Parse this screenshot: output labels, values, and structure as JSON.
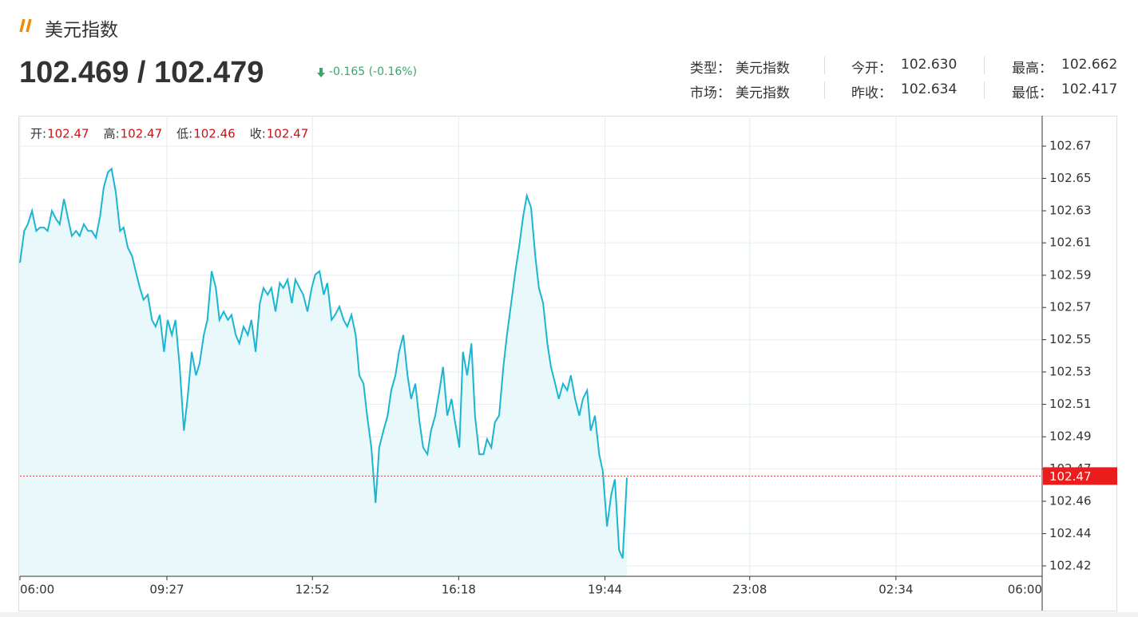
{
  "header": {
    "title": "美元指数",
    "price": "102.469 / 102.479",
    "change": "-0.165 (-0.16%)"
  },
  "info": [
    [
      {
        "label": "类型：",
        "value": "美元指数"
      },
      {
        "label": "今开：",
        "value": "102.630"
      },
      {
        "label": "最高：",
        "value": "102.662"
      }
    ],
    [
      {
        "label": "市场：",
        "value": "美元指数"
      },
      {
        "label": "昨收：",
        "value": "102.634"
      },
      {
        "label": "最低：",
        "value": "102.417"
      }
    ]
  ],
  "ohlc": [
    {
      "label": "开:",
      "value": "102.47"
    },
    {
      "label": "高:",
      "value": "102.47"
    },
    {
      "label": "低:",
      "value": "102.46"
    },
    {
      "label": "收:",
      "value": "102.47"
    }
  ],
  "chart_data": {
    "type": "line",
    "color": "#1ab6d1",
    "fill": "#e9f8fa",
    "grid": true,
    "last_value": 102.47,
    "xlim": [
      0,
      1440
    ],
    "ylim": [
      102.4103,
      102.6846
    ],
    "xticks": [
      {
        "value": 0,
        "label": "06:00"
      },
      {
        "value": 207,
        "label": "09:27"
      },
      {
        "value": 412,
        "label": "12:52"
      },
      {
        "value": 618,
        "label": "16:18"
      },
      {
        "value": 824,
        "label": "19:44"
      },
      {
        "value": 1028,
        "label": "23:08"
      },
      {
        "value": 1234,
        "label": "02:34"
      },
      {
        "value": 1440,
        "label": "06:00"
      }
    ],
    "yticks": [
      {
        "value": 102.4165,
        "label": "102.42"
      },
      {
        "value": 102.4357,
        "label": "102.44"
      },
      {
        "value": 102.455,
        "label": "102.46"
      },
      {
        "value": 102.4742,
        "label": "102.47"
      },
      {
        "value": 102.4934,
        "label": "102.49"
      },
      {
        "value": 102.5127,
        "label": "102.51"
      },
      {
        "value": 102.532,
        "label": "102.53"
      },
      {
        "value": 102.5512,
        "label": "102.55"
      },
      {
        "value": 102.5704,
        "label": "102.57"
      },
      {
        "value": 102.5896,
        "label": "102.59"
      },
      {
        "value": 102.6089,
        "label": "102.61"
      },
      {
        "value": 102.628,
        "label": "102.63"
      },
      {
        "value": 102.6473,
        "label": "102.65"
      },
      {
        "value": 102.6665,
        "label": "102.67"
      }
    ],
    "x": [
      0,
      6,
      11,
      17,
      23,
      28,
      34,
      39,
      45,
      51,
      56,
      62,
      68,
      73,
      79,
      84,
      90,
      96,
      101,
      107,
      113,
      118,
      124,
      129,
      135,
      141,
      146,
      152,
      158,
      163,
      169,
      174,
      180,
      186,
      191,
      197,
      203,
      208,
      214,
      219,
      225,
      231,
      236,
      242,
      248,
      253,
      259,
      264,
      270,
      276,
      281,
      287,
      293,
      298,
      304,
      309,
      315,
      321,
      326,
      332,
      338,
      343,
      349,
      354,
      360,
      366,
      371,
      377,
      383,
      388,
      394,
      399,
      405,
      411,
      416,
      422,
      428,
      433,
      439,
      444,
      450,
      456,
      461,
      467,
      473,
      478,
      484,
      489,
      495,
      501,
      506,
      512,
      518,
      523,
      529,
      534,
      540,
      546,
      551,
      557,
      563,
      568,
      574,
      579,
      585,
      591,
      596,
      602,
      608,
      613,
      619,
      624,
      630,
      636,
      641,
      647,
      653,
      658,
      664,
      669,
      675,
      681,
      686,
      692,
      698,
      703,
      709,
      714,
      720,
      726,
      731,
      737,
      743,
      748,
      754,
      759,
      765,
      771,
      776,
      782,
      788,
      793,
      799,
      804,
      810,
      816,
      821,
      827,
      833,
      838,
      844,
      849,
      855
    ],
    "values": [
      102.597,
      102.616,
      102.62,
      102.628,
      102.616,
      102.618,
      102.618,
      102.616,
      102.628,
      102.623,
      102.62,
      102.635,
      102.623,
      102.613,
      102.616,
      102.613,
      102.62,
      102.616,
      102.616,
      102.612,
      102.625,
      102.642,
      102.651,
      102.653,
      102.639,
      102.616,
      102.618,
      102.606,
      102.601,
      102.592,
      102.582,
      102.575,
      102.578,
      102.563,
      102.559,
      102.566,
      102.544,
      102.563,
      102.554,
      102.563,
      102.535,
      102.497,
      102.516,
      102.544,
      102.53,
      102.537,
      102.554,
      102.563,
      102.592,
      102.582,
      102.563,
      102.568,
      102.563,
      102.566,
      102.554,
      102.549,
      102.559,
      102.554,
      102.563,
      102.544,
      102.573,
      102.582,
      102.578,
      102.582,
      102.568,
      102.585,
      102.582,
      102.587,
      102.573,
      102.587,
      102.582,
      102.578,
      102.568,
      102.582,
      102.59,
      102.592,
      102.578,
      102.585,
      102.563,
      102.566,
      102.571,
      102.563,
      102.559,
      102.566,
      102.554,
      102.53,
      102.525,
      102.506,
      102.487,
      102.454,
      102.487,
      102.497,
      102.506,
      102.521,
      102.53,
      102.544,
      102.554,
      102.53,
      102.516,
      102.525,
      102.502,
      102.487,
      102.483,
      102.497,
      102.506,
      102.521,
      102.535,
      102.506,
      102.516,
      102.502,
      102.487,
      102.544,
      102.53,
      102.549,
      102.506,
      102.483,
      102.483,
      102.492,
      102.487,
      102.502,
      102.506,
      102.535,
      102.554,
      102.573,
      102.592,
      102.606,
      102.625,
      102.637,
      102.63,
      102.601,
      102.582,
      102.573,
      102.549,
      102.535,
      102.525,
      102.516,
      102.525,
      102.521,
      102.53,
      102.516,
      102.506,
      102.516,
      102.521,
      102.497,
      102.506,
      102.483,
      102.473,
      102.44,
      102.459,
      102.468,
      102.426,
      102.421,
      102.469
    ]
  }
}
